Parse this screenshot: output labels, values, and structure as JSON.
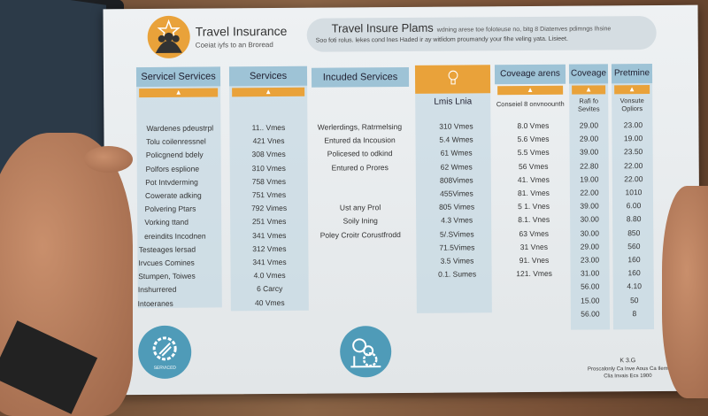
{
  "header": {
    "title": "Travel Insurance",
    "subtitle": "Coeiat iyfs to an Broread",
    "plans_title": "Travel Insure Plams",
    "plans_note": "wdning arese toe foloteuse no, bitg 8 Diatenves pdimngs Ihsine",
    "plans_desc": "Soo foti rolus. lekes cond lnes Haded ir ay witlidom proumandy your fihe veling yata. Lisieet."
  },
  "columns": [
    {
      "label": "Servicel Services"
    },
    {
      "label": "Services"
    },
    {
      "label": "Incuded Services"
    },
    {
      "label": "Lmis Lnia",
      "icon": "lightbulb-icon"
    },
    {
      "label": "Coveage arens",
      "sub": "Conseiel 8 onvnoounth"
    },
    {
      "label": "Coveage",
      "sub": "Rafi fo Sevites"
    },
    {
      "label": "Pretmine",
      "sub": "Vonsute Opliors"
    }
  ],
  "col1": [
    "Wardenes pdeustrpl",
    "Tolu coilenressnel",
    "Policgnend bdely",
    "Polfors esplione",
    "Pot Intvderming",
    "Cowerate adking",
    "Polvering Ptars",
    "Vorking ttand",
    "ereindits Incodnen",
    "Testeages lersad",
    "Irvcues Comines",
    "Stumpen, Toiwes",
    "Inshurrered",
    "Intoeranes"
  ],
  "col2": [
    "11.. Vmes",
    "421 Vnes",
    "308 Vmes",
    "310 Vmes",
    "758 Vmes",
    "751 Vmes",
    "792 Vimes",
    "251 Vmes",
    "341 Vmes",
    "312 Vmes",
    "341 Vmes",
    "4.0 Vmes",
    "6 Carcy",
    "40 Vmes"
  ],
  "col3": [
    "Werlerdings, Ratrmelsing",
    "Entured da Incousion",
    "Policesed to odkind",
    "Entured o Prores",
    "",
    "",
    "Ust any Prol",
    "Soily Ining",
    "Poley Croitr Corustfrodd"
  ],
  "col4": [
    "310 Vmes",
    "5.4 Wmes",
    "61 Wmes",
    "62 Wmes",
    "808Vimes",
    "455Vimes",
    "805 Vimes",
    "4.3 Vmes",
    "5/.SVimes",
    "71.5Vimes",
    "3.5 Vimes",
    "0.1. Sumes"
  ],
  "col5": [
    "8.0 Vmes",
    "5.6 Vmes",
    "5.5 Vmes",
    "56 Vmes",
    "41. Vmes",
    "81. Vmes",
    "5 1. Vnes",
    "8.1. Vnes",
    "63 Vmes",
    "31 Vnes",
    "91. Vnes",
    "121. Vmes"
  ],
  "col6": [
    "29.00",
    "29.00",
    "39.00",
    "22.80",
    "19.00",
    "22.00",
    "39.00",
    "30.00",
    "30.00",
    "29.00",
    "23.00",
    "31.00",
    "56.00",
    "15.00",
    "56.00"
  ],
  "col7": [
    "23.00",
    "19.00",
    "23.50",
    "22.00",
    "22.00",
    "1010",
    "6.00",
    "8.80",
    "850",
    "560",
    "160",
    "160",
    "4.10",
    "50",
    "8"
  ],
  "footer": {
    "badge_text": "SERVICED",
    "code": "K 3.G",
    "line1": "Proscalonly Ca Inve Aous Ca Ilem",
    "line2": "Clia Invais Ecs 1900"
  },
  "colors": {
    "accent": "#e9a23a",
    "header_blue": "#9ec3d6",
    "circle": "#4f9bb8"
  }
}
